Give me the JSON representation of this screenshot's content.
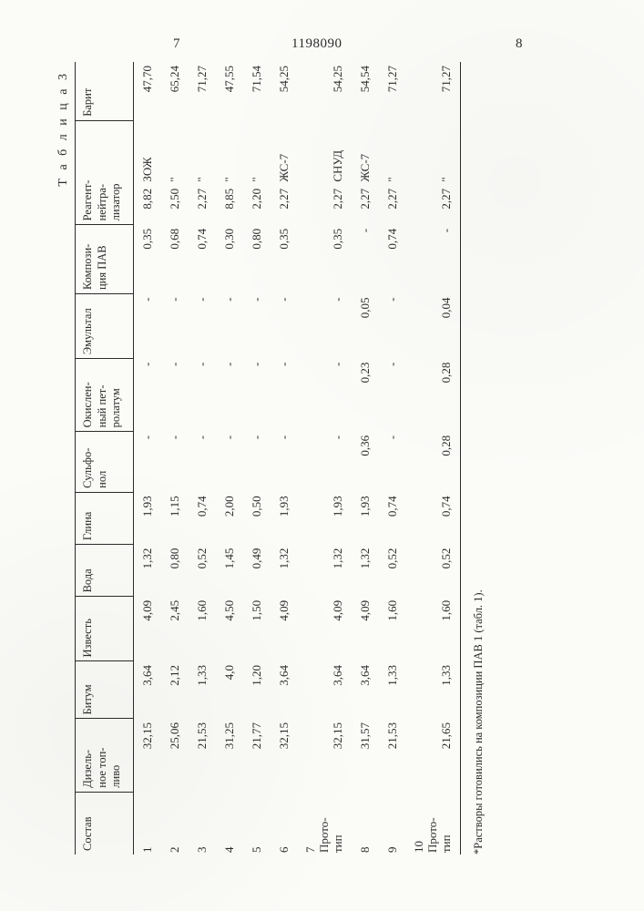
{
  "header": {
    "doc_number": "1198090",
    "page_left": "7",
    "page_right": "8"
  },
  "table": {
    "caption": "Т а б л и ц а  3",
    "columns": [
      "Состав",
      "Дизель-\nное топ-\nливо",
      "Битум",
      "Известь",
      "Вода",
      "Глина",
      "Сульфо-\nнол",
      "Окислен-\nный пет-\nролатум",
      "Эмультал",
      "Компози-\nция ПАВ",
      "Реагент-\nнейтра-\nлизатор",
      "Барит"
    ],
    "rows": [
      {
        "sostav": "1",
        "diesel": "32,15",
        "bitum": "3,64",
        "izvest": "4,09",
        "voda": "1,32",
        "glina": "1,93",
        "sulf": "-",
        "oxid": "-",
        "emul": "-",
        "pav": "0,35",
        "reag_amt": "8,82",
        "reag_name": "ЗОЖ",
        "barit": "47,70"
      },
      {
        "sostav": "2",
        "diesel": "25,06",
        "bitum": "2,12",
        "izvest": "2,45",
        "voda": "0,80",
        "glina": "1,15",
        "sulf": "-",
        "oxid": "-",
        "emul": "-",
        "pav": "0,68",
        "reag_amt": "2,50",
        "reag_name": "\"",
        "barit": "65,24"
      },
      {
        "sostav": "3",
        "diesel": "21,53",
        "bitum": "1,33",
        "izvest": "1,60",
        "voda": "0,52",
        "glina": "0,74",
        "sulf": "-",
        "oxid": "-",
        "emul": "-",
        "pav": "0,74",
        "reag_amt": "2,27",
        "reag_name": "\"",
        "barit": "71,27"
      },
      {
        "sostav": "4",
        "diesel": "31,25",
        "bitum": "4,0",
        "izvest": "4,50",
        "voda": "1,45",
        "glina": "2,00",
        "sulf": "-",
        "oxid": "-",
        "emul": "-",
        "pav": "0,30",
        "reag_amt": "8,85",
        "reag_name": "\"",
        "barit": "47,55"
      },
      {
        "sostav": "5",
        "diesel": "21,77",
        "bitum": "1,20",
        "izvest": "1,50",
        "voda": "0,49",
        "glina": "0,50",
        "sulf": "-",
        "oxid": "-",
        "emul": "-",
        "pav": "0,80",
        "reag_amt": "2,20",
        "reag_name": "\"",
        "barit": "71,54"
      },
      {
        "sostav": "6",
        "diesel": "32,15",
        "bitum": "3,64",
        "izvest": "4,09",
        "voda": "1,32",
        "glina": "1,93",
        "sulf": "-",
        "oxid": "-",
        "emul": "-",
        "pav": "0,35",
        "reag_amt": "2,27",
        "reag_name": "ЖС-7",
        "barit": "54,25"
      },
      {
        "sostav": "7\nПрото-\nтип",
        "diesel": "32,15",
        "bitum": "3,64",
        "izvest": "4,09",
        "voda": "1,32",
        "glina": "1,93",
        "sulf": "-",
        "oxid": "-",
        "emul": "-",
        "pav": "0,35",
        "reag_amt": "2,27",
        "reag_name": "СНУД",
        "barit": "54,25"
      },
      {
        "sostav": "8",
        "diesel": "31,57",
        "bitum": "3,64",
        "izvest": "4,09",
        "voda": "1,32",
        "glina": "1,93",
        "sulf": "0,36",
        "oxid": "0,23",
        "emul": "0,05",
        "pav": "-",
        "reag_amt": "2,27",
        "reag_name": "ЖС-7",
        "barit": "54,54"
      },
      {
        "sostav": "9",
        "diesel": "21,53",
        "bitum": "1,33",
        "izvest": "1,60",
        "voda": "0,52",
        "glina": "0,74",
        "sulf": "-",
        "oxid": "-",
        "emul": "-",
        "pav": "0,74",
        "reag_amt": "2,27",
        "reag_name": "\"",
        "barit": "71,27"
      },
      {
        "sostav": "10\nПрото-\nтип",
        "diesel": "21,65",
        "bitum": "1,33",
        "izvest": "1,60",
        "voda": "0,52",
        "glina": "0,74",
        "sulf": "0,28",
        "oxid": "0,28",
        "emul": "0,04",
        "pav": "-",
        "reag_amt": "2,27",
        "reag_name": "\"",
        "barit": "71,27"
      }
    ],
    "footnote": "*Растворы готовились на композиции ПАВ 1 (табл. 1)."
  }
}
